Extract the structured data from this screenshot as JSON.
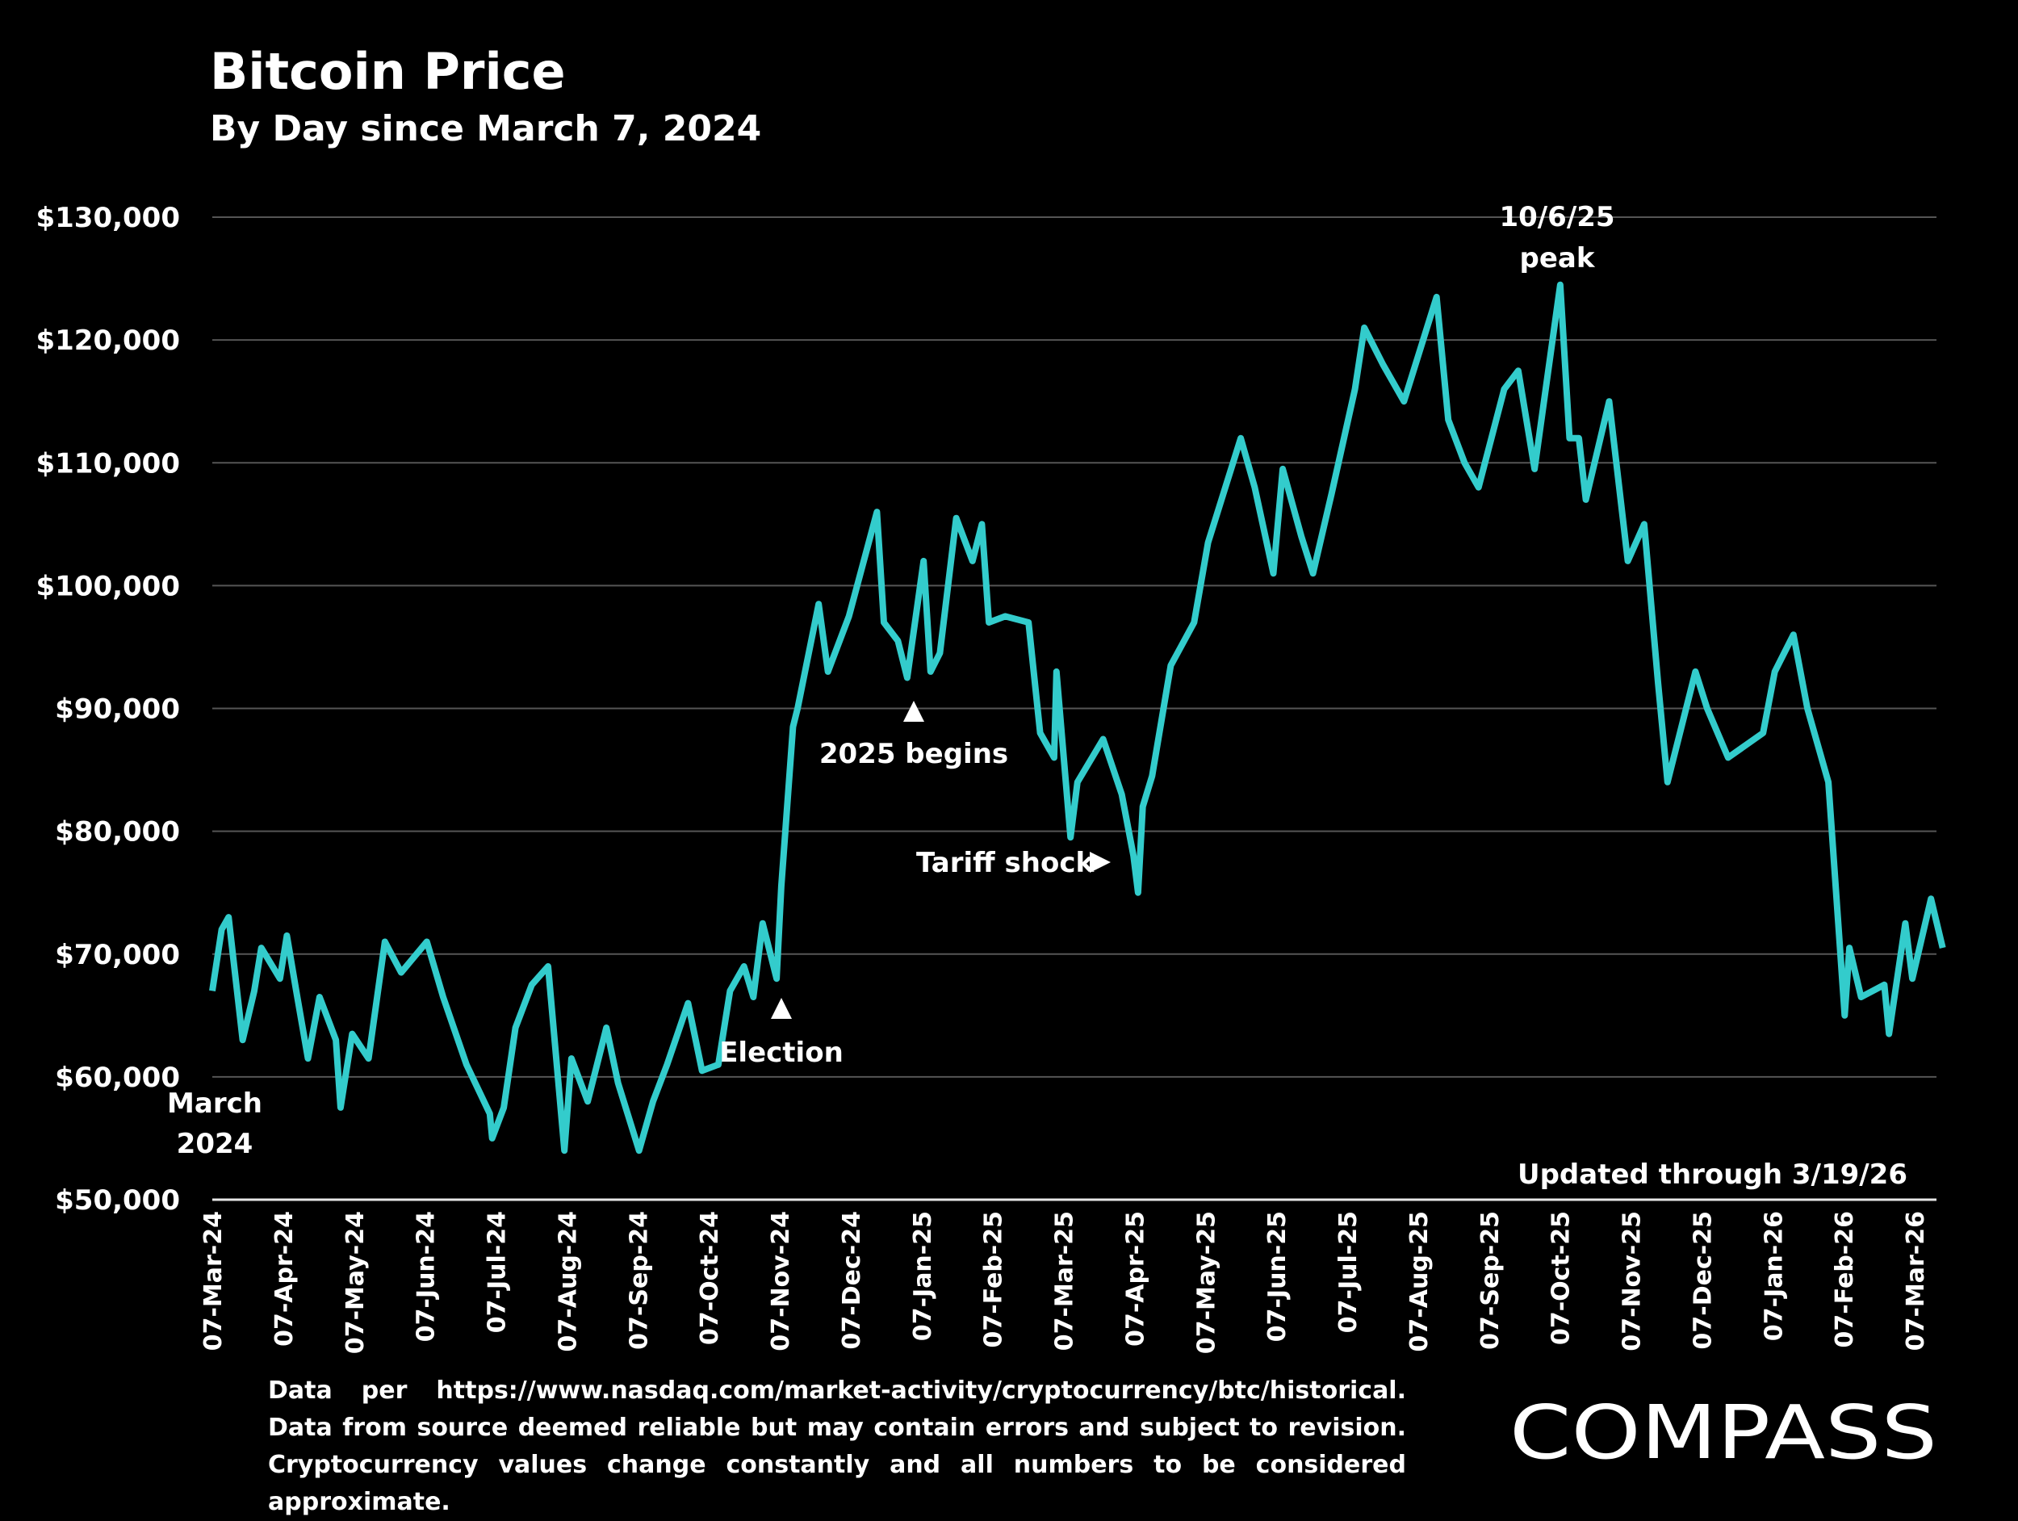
{
  "title": "Bitcoin Price",
  "subtitle": "By Day since March 7, 2024",
  "footnote": "Data per https://www.nasdaq.com/market-activity/cryptocurrency/btc/historical. Data from source deemed reliable but may contain errors and subject to revision. Cryptocurrency values change constantly and all numbers to be considered approximate.",
  "logo_text": "COMPASS",
  "chart_data": {
    "type": "line",
    "title": "Bitcoin Price",
    "subtitle": "By Day since March 7, 2024",
    "line_color": "#33CCCC",
    "grid": true,
    "ylim": [
      50000,
      130000
    ],
    "y_ticks": [
      50000,
      60000,
      70000,
      80000,
      90000,
      100000,
      110000,
      120000,
      130000
    ],
    "y_tick_labels": [
      "$50,000",
      "$60,000",
      "$70,000",
      "$80,000",
      "$90,000",
      "$100,000",
      "$110,000",
      "$120,000",
      "$130,000"
    ],
    "x_tick_labels": [
      "07-Mar-24",
      "07-Apr-24",
      "07-May-24",
      "07-Jun-24",
      "07-Jul-24",
      "07-Aug-24",
      "07-Sep-24",
      "07-Oct-24",
      "07-Nov-24",
      "07-Dec-24",
      "07-Jan-25",
      "07-Feb-25",
      "07-Mar-25",
      "07-Apr-25",
      "07-May-25",
      "07-Jun-25",
      "07-Jul-25",
      "07-Aug-25",
      "07-Sep-25",
      "07-Oct-25",
      "07-Nov-25",
      "07-Dec-25",
      "07-Jan-26",
      "07-Feb-26",
      "07-Mar-26"
    ],
    "series": [
      {
        "x": [
          "2024-03-07",
          "2024-03-11",
          "2024-03-14",
          "2024-03-20",
          "2024-03-25",
          "2024-03-28",
          "2024-04-05",
          "2024-04-08",
          "2024-04-12",
          "2024-04-17",
          "2024-04-22",
          "2024-04-29",
          "2024-05-01",
          "2024-05-06",
          "2024-05-13",
          "2024-05-20",
          "2024-05-27",
          "2024-06-07",
          "2024-06-14",
          "2024-06-24",
          "2024-07-04",
          "2024-07-05",
          "2024-07-10",
          "2024-07-15",
          "2024-07-22",
          "2024-07-29",
          "2024-08-05",
          "2024-08-08",
          "2024-08-15",
          "2024-08-23",
          "2024-08-28",
          "2024-09-06",
          "2024-09-12",
          "2024-09-18",
          "2024-09-27",
          "2024-10-03",
          "2024-10-10",
          "2024-10-15",
          "2024-10-21",
          "2024-10-25",
          "2024-10-29",
          "2024-11-04",
          "2024-11-06",
          "2024-11-11",
          "2024-11-13",
          "2024-11-22",
          "2024-11-26",
          "2024-12-05",
          "2024-12-17",
          "2024-12-20",
          "2024-12-26",
          "2024-12-30",
          "2025-01-06",
          "2025-01-09",
          "2025-01-13",
          "2025-01-20",
          "2025-01-27",
          "2025-01-31",
          "2025-02-03",
          "2025-02-10",
          "2025-02-20",
          "2025-02-25",
          "2025-03-03",
          "2025-03-04",
          "2025-03-10",
          "2025-03-13",
          "2025-03-24",
          "2025-04-01",
          "2025-04-06",
          "2025-04-08",
          "2025-04-10",
          "2025-04-14",
          "2025-04-22",
          "2025-05-02",
          "2025-05-08",
          "2025-05-22",
          "2025-05-28",
          "2025-06-05",
          "2025-06-09",
          "2025-06-17",
          "2025-06-22",
          "2025-06-30",
          "2025-07-10",
          "2025-07-14",
          "2025-07-22",
          "2025-07-31",
          "2025-08-14",
          "2025-08-19",
          "2025-08-26",
          "2025-09-01",
          "2025-09-12",
          "2025-09-18",
          "2025-09-25",
          "2025-10-06",
          "2025-10-10",
          "2025-10-14",
          "2025-10-17",
          "2025-10-27",
          "2025-11-04",
          "2025-11-11",
          "2025-11-17",
          "2025-11-21",
          "2025-12-03",
          "2025-12-08",
          "2025-12-17",
          "2026-01-01",
          "2026-01-06",
          "2026-01-14",
          "2026-01-20",
          "2026-01-29",
          "2026-02-05",
          "2026-02-07",
          "2026-02-12",
          "2026-02-22",
          "2026-02-24",
          "2026-03-03",
          "2026-03-06",
          "2026-03-14",
          "2026-03-19"
        ],
        "values": [
          67000,
          72000,
          73000,
          63000,
          67000,
          70500,
          68000,
          71500,
          67000,
          61500,
          66500,
          63000,
          57500,
          63500,
          61500,
          71000,
          68500,
          71000,
          66500,
          61000,
          57000,
          55000,
          57500,
          64000,
          67500,
          69000,
          54000,
          61500,
          58000,
          64000,
          59500,
          54000,
          58000,
          61000,
          66000,
          60500,
          61000,
          67000,
          69000,
          66500,
          72500,
          68000,
          75500,
          88500,
          90000,
          98500,
          93000,
          97500,
          106000,
          97000,
          95500,
          92500,
          102000,
          93000,
          94500,
          105500,
          102000,
          105000,
          97000,
          97500,
          97000,
          88000,
          86000,
          93000,
          79500,
          84000,
          87500,
          83000,
          78000,
          75000,
          82000,
          84500,
          93500,
          97000,
          103500,
          112000,
          108000,
          101000,
          109500,
          104000,
          101000,
          107500,
          116000,
          121000,
          118000,
          115000,
          123500,
          113500,
          110000,
          108000,
          116000,
          117500,
          109500,
          124500,
          112000,
          112000,
          107000,
          115000,
          102000,
          105000,
          92000,
          84000,
          93000,
          90000,
          86000,
          88000,
          93000,
          96000,
          90000,
          84000,
          65000,
          70500,
          66500,
          67500,
          63500,
          72500,
          68000,
          74500,
          70500
        ]
      }
    ],
    "annotations": {
      "march": [
        "March",
        "2024"
      ],
      "election": "Election",
      "begins": "2025 begins",
      "tariff": "Tariff shock",
      "peak": [
        "10/6/25",
        "peak"
      ],
      "updated": "Updated through 3/19/26"
    }
  }
}
